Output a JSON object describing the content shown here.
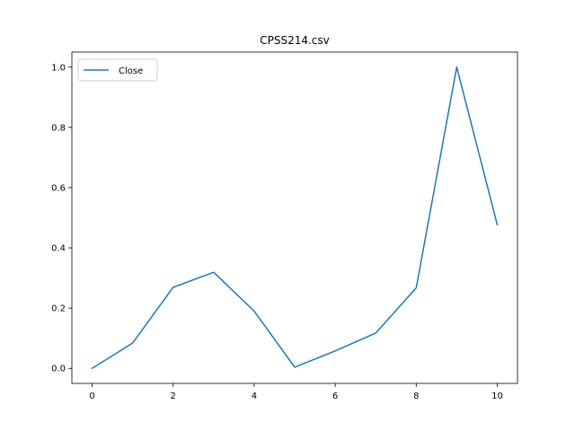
{
  "chart_data": {
    "type": "line",
    "title": "CPSS214.csv",
    "xlabel": "",
    "ylabel": "",
    "xlim": [
      -0.5,
      10.5
    ],
    "ylim": [
      -0.05,
      1.05
    ],
    "xticks": [
      0,
      2,
      4,
      6,
      8,
      10
    ],
    "xtick_labels": [
      "0",
      "2",
      "4",
      "6",
      "8",
      "10"
    ],
    "yticks": [
      0.0,
      0.2,
      0.4,
      0.6,
      0.8,
      1.0
    ],
    "ytick_labels": [
      "0.0",
      "0.2",
      "0.4",
      "0.6",
      "0.8",
      "1.0"
    ],
    "grid": false,
    "legend_position": "top-left",
    "series": [
      {
        "name": "Close",
        "color": "#1f77b4",
        "x": [
          0,
          1,
          2,
          3,
          4,
          5,
          6,
          7,
          8,
          9,
          10
        ],
        "y": [
          0.0,
          0.084,
          0.269,
          0.319,
          0.19,
          0.004,
          0.058,
          0.117,
          0.267,
          1.0,
          0.477
        ]
      }
    ]
  }
}
